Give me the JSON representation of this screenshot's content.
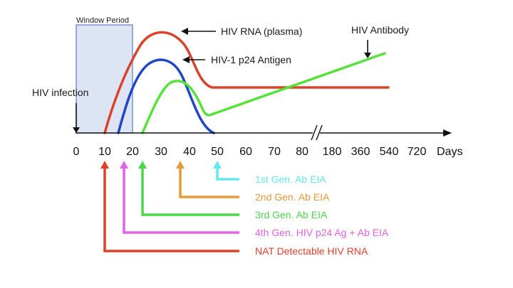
{
  "window_period_label": "Window Period",
  "infection_label": "HIV infection",
  "curve_labels": {
    "rna": "HIV RNA (plasma)",
    "p24": "HIV-1 p24 Antigen",
    "antibody": "HIV Antibody"
  },
  "axis": {
    "unit": "Days",
    "ticks": [
      "0",
      "10",
      "20",
      "30",
      "40",
      "50",
      "60",
      "70",
      "80",
      "180",
      "360",
      "540",
      "720"
    ]
  },
  "assays": [
    {
      "label": "1st Gen. Ab EIA",
      "color": "#66e6ee",
      "day": 49
    },
    {
      "label": "2nd Gen. Ab EIA",
      "color": "#e89a3a",
      "day": 36
    },
    {
      "label": "3rd Gen. Ab EIA",
      "color": "#4cd64a",
      "day": 23
    },
    {
      "label": "4th Gen. HIV p24 Ag + Ab EIA",
      "color": "#e163e6",
      "day": 17
    },
    {
      "label": "NAT Detectable HIV RNA",
      "color": "#e0402a",
      "day": 10
    }
  ],
  "colors": {
    "rna": "#d9432b",
    "p24": "#2145c7",
    "antibody": "#56e23a",
    "window_fill": "#dde5f5",
    "window_border": "#5a7fc2"
  }
}
